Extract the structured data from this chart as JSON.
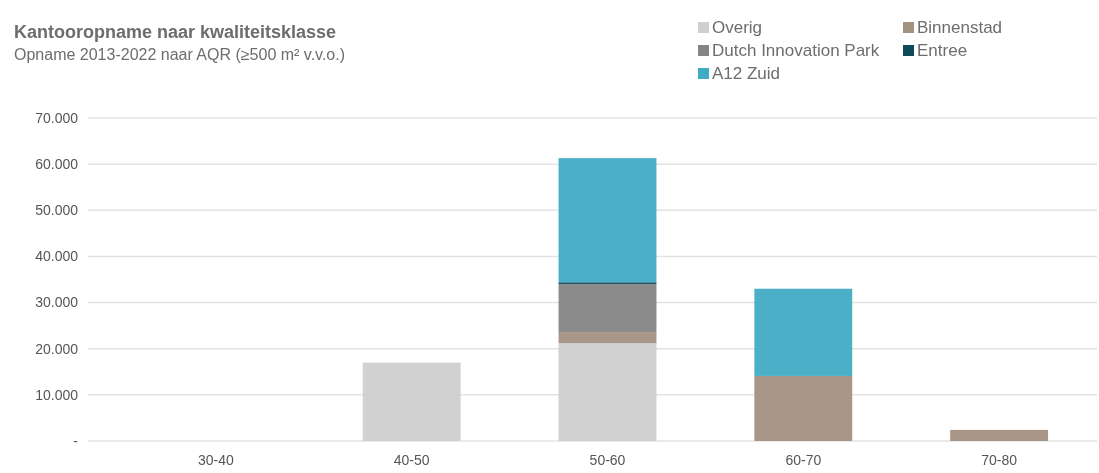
{
  "chart_data": {
    "type": "bar",
    "title": "Kantooropname naar kwaliteitsklasse",
    "subtitle": "Opname 2013-2022 naar AQR (≥500 m² v.v.o.)",
    "categories": [
      "30-40",
      "40-50",
      "50-60",
      "60-70",
      "70-80"
    ],
    "stacked": true,
    "series": [
      {
        "name": "Overig",
        "color": "#cfcfcf",
        "values": [
          0,
          17000,
          21200,
          null,
          0
        ]
      },
      {
        "name": "Binnenstad",
        "color": "#a39182",
        "values": [
          0,
          0,
          2400,
          14100,
          2400
        ]
      },
      {
        "name": "Dutch Innovation Park",
        "color": "#858585",
        "values": [
          0,
          0,
          10400,
          0,
          0
        ]
      },
      {
        "name": "Entree",
        "color": "#0d4b5a",
        "values": [
          0,
          0,
          400,
          0,
          0
        ]
      },
      {
        "name": "A12 Zuid",
        "color": "#40abc4",
        "values": [
          0,
          0,
          26900,
          18900,
          0
        ]
      }
    ],
    "ylim": [
      0,
      70000
    ],
    "yticks": [
      {
        "value": 0,
        "label": "-"
      },
      {
        "value": 10000,
        "label": "10.000"
      },
      {
        "value": 20000,
        "label": "20.000"
      },
      {
        "value": 30000,
        "label": "30.000"
      },
      {
        "value": 40000,
        "label": "40.000"
      },
      {
        "value": 50000,
        "label": "50.000"
      },
      {
        "value": 60000,
        "label": "60.000"
      },
      {
        "value": 70000,
        "label": "70.000"
      }
    ],
    "grid": "y",
    "legend": "top right"
  }
}
